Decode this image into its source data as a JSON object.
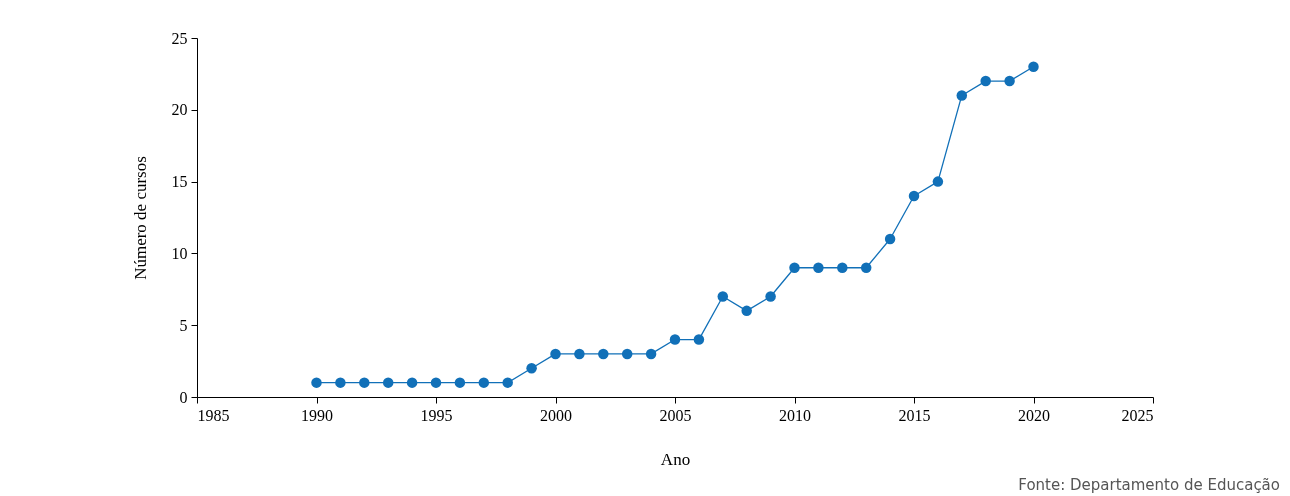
{
  "chart_data": {
    "type": "line",
    "xlabel": "Ano",
    "ylabel": "Número de cursos",
    "x": [
      1990,
      1991,
      1992,
      1993,
      1994,
      1995,
      1996,
      1997,
      1998,
      1999,
      2000,
      2001,
      2002,
      2003,
      2004,
      2005,
      2006,
      2007,
      2008,
      2009,
      2010,
      2011,
      2012,
      2013,
      2014,
      2015,
      2016,
      2017,
      2018,
      2019,
      2020
    ],
    "series": [
      {
        "color": "#1170b8",
        "values": [
          1,
          1,
          1,
          1,
          1,
          1,
          1,
          1,
          1,
          2,
          3,
          3,
          3,
          3,
          3,
          4,
          4,
          7,
          6,
          7,
          9,
          9,
          9,
          9,
          11,
          14,
          15,
          21,
          22,
          22,
          23
        ]
      }
    ],
    "xlim": [
      1985,
      2025
    ],
    "xticks": [
      1985,
      1990,
      1995,
      2000,
      2005,
      2010,
      2015,
      2020,
      2025
    ],
    "ylim": [
      0,
      25
    ],
    "yticks": [
      0,
      5,
      10,
      15,
      20,
      25
    ],
    "grid": false,
    "legend": false,
    "marker": "circle",
    "line_style": "solid",
    "annotations": [
      "Fonte: Departamento de Educação"
    ]
  }
}
